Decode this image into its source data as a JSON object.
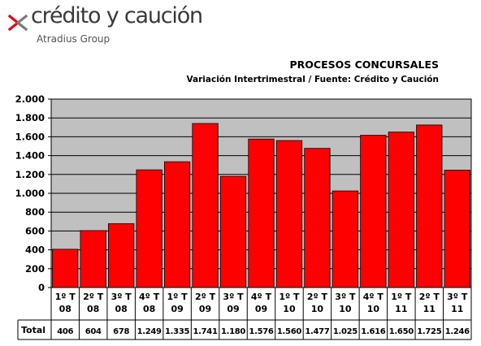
{
  "logo": {
    "brand": "crédito y caución",
    "sub": "Atradius Group",
    "colors": {
      "mark": "#e2001a",
      "text": "#3a3a3a"
    }
  },
  "chart_data": {
    "type": "bar",
    "title": "PROCESOS CONCURSALES",
    "subtitle": "Variación Intertrimestral / Fuente: Crédito y Caución",
    "categories": [
      [
        "1º T",
        "08"
      ],
      [
        "2º T",
        "08"
      ],
      [
        "3º T",
        "08"
      ],
      [
        "4º T",
        "08"
      ],
      [
        "1º T",
        "09"
      ],
      [
        "2º T",
        "09"
      ],
      [
        "3º T",
        "09"
      ],
      [
        "4º T",
        "09"
      ],
      [
        "1º T",
        "10"
      ],
      [
        "2º T",
        "10"
      ],
      [
        "3º T",
        "10"
      ],
      [
        "4º T",
        "10"
      ],
      [
        "1º T",
        "11"
      ],
      [
        "2º T",
        "11"
      ],
      [
        "3º T",
        "11"
      ]
    ],
    "values": [
      406,
      604,
      678,
      1249,
      1335,
      1741,
      1180,
      1576,
      1560,
      1477,
      1025,
      1616,
      1650,
      1725,
      1246
    ],
    "value_labels": [
      "406",
      "604",
      "678",
      "1.249",
      "1.335",
      "1.741",
      "1.180",
      "1.576",
      "1.560",
      "1.477",
      "1.025",
      "1.616",
      "1.650",
      "1.725",
      "1.246"
    ],
    "table_row_label": "Total",
    "ylim": [
      0,
      2000
    ],
    "yticks": [
      0,
      200,
      400,
      600,
      800,
      1000,
      1200,
      1400,
      1600,
      1800,
      2000
    ],
    "ytick_labels": [
      "0",
      "200",
      "400",
      "600",
      "800",
      "1.000",
      "1.200",
      "1.400",
      "1.600",
      "1.800",
      "2.000"
    ],
    "grid": true,
    "bar_color": "#ff0000",
    "plot_background": "#c0c0c0"
  }
}
